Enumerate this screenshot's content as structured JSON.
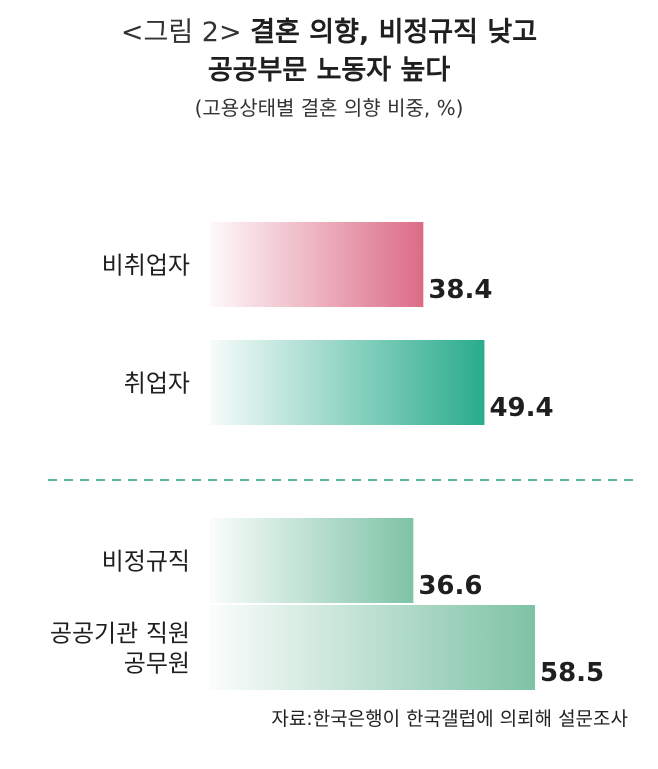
{
  "header": {
    "fig_label": "<그림 2>",
    "title_line1": "결혼 의향, 비정규직 낮고",
    "title_line2": "공공부문 노동자 높다",
    "subtitle": "(고용상태별 결혼 의향 비중, %)"
  },
  "chart_data": {
    "type": "bar",
    "orientation": "horizontal",
    "groups": [
      {
        "bars": [
          {
            "label": [
              "비취업자"
            ],
            "value": 38.4,
            "color": "#dc6b86"
          },
          {
            "label": [
              "취업자"
            ],
            "value": 49.4,
            "color": "#2aab8c"
          }
        ]
      },
      {
        "bars": [
          {
            "label": [
              "비정규직"
            ],
            "value": 36.6,
            "color": "#7ec3a6"
          },
          {
            "label": [
              "공공기관 직원",
              "공무원"
            ],
            "value": 58.5,
            "color": "#7ec3a6"
          }
        ]
      }
    ],
    "xlim": [
      0,
      58.5
    ],
    "grid": false,
    "legend": "none",
    "separator": {
      "style": "dashed",
      "color": "#5bb89a"
    }
  },
  "footer": {
    "source": "자료:한국은행이 한국갤럽에 의뢰해 설문조사"
  }
}
